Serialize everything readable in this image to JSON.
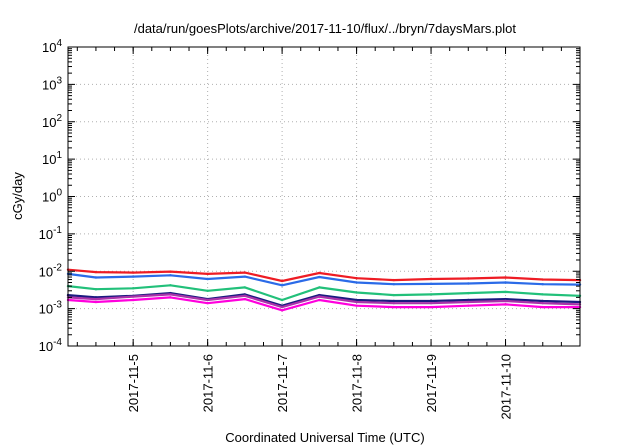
{
  "chart_data": {
    "type": "line",
    "title": "/data/run/goesPlots/archive/2017-11-10/flux/../bryn/7daysMars.plot",
    "xlabel": "Coordinated Universal Time (UTC)",
    "ylabel": "cGy/day",
    "yscale": "log",
    "ylim": [
      0.0001,
      10000
    ],
    "yticks": [
      {
        "base": "10",
        "exp": "4"
      },
      {
        "base": "10",
        "exp": "3"
      },
      {
        "base": "10",
        "exp": "2"
      },
      {
        "base": "10",
        "exp": "1"
      },
      {
        "base": "10",
        "exp": "0"
      },
      {
        "base": "10",
        "exp": "-1"
      },
      {
        "base": "10",
        "exp": "-2"
      },
      {
        "base": "10",
        "exp": "-3"
      },
      {
        "base": "10",
        "exp": "-4"
      }
    ],
    "xlim": [
      "2017-11-04T03:00",
      "2017-11-11T00:00"
    ],
    "xticks": [
      "2017-11-5",
      "2017-11-6",
      "2017-11-7",
      "2017-11-8",
      "2017-11-9",
      "2017-11-10"
    ],
    "grid": true,
    "x_days": [
      "2017-11-04T03:00",
      "2017-11-04T12:00",
      "2017-11-05T00:00",
      "2017-11-05T12:00",
      "2017-11-06T00:00",
      "2017-11-06T12:00",
      "2017-11-07T00:00",
      "2017-11-07T12:00",
      "2017-11-08T00:00",
      "2017-11-08T12:00",
      "2017-11-09T00:00",
      "2017-11-09T12:00",
      "2017-11-10T00:00",
      "2017-11-10T12:00",
      "2017-11-11T00:00"
    ],
    "series": [
      {
        "color": "#ee1c24",
        "values": [
          0.011,
          0.0095,
          0.0092,
          0.0098,
          0.0085,
          0.0092,
          0.0055,
          0.009,
          0.0065,
          0.0058,
          0.0062,
          0.0064,
          0.0068,
          0.006,
          0.0058
        ]
      },
      {
        "color": "#2b6be8",
        "values": [
          0.0085,
          0.0068,
          0.0072,
          0.0078,
          0.0062,
          0.0072,
          0.0042,
          0.007,
          0.005,
          0.0045,
          0.0046,
          0.0047,
          0.005,
          0.0045,
          0.0044
        ]
      },
      {
        "color": "#22c07a",
        "values": [
          0.004,
          0.0033,
          0.0035,
          0.0042,
          0.003,
          0.0037,
          0.0017,
          0.0037,
          0.0027,
          0.0023,
          0.0024,
          0.0026,
          0.0028,
          0.0024,
          0.0022
        ]
      },
      {
        "color": "#1a1a80",
        "values": [
          0.0023,
          0.002,
          0.0022,
          0.0026,
          0.0018,
          0.0024,
          0.0012,
          0.0023,
          0.0017,
          0.0016,
          0.0016,
          0.0017,
          0.0018,
          0.0016,
          0.0015
        ]
      },
      {
        "color": "#aa33aa",
        "values": [
          0.002,
          0.0018,
          0.0021,
          0.0024,
          0.0017,
          0.0022,
          0.0011,
          0.0021,
          0.0015,
          0.0014,
          0.0014,
          0.0015,
          0.0016,
          0.0014,
          0.0013
        ]
      },
      {
        "color": "#ff00dd",
        "values": [
          0.0017,
          0.0015,
          0.0017,
          0.002,
          0.0014,
          0.0018,
          0.0009,
          0.0017,
          0.0012,
          0.0011,
          0.0011,
          0.0012,
          0.0013,
          0.0011,
          0.0011
        ]
      }
    ]
  }
}
